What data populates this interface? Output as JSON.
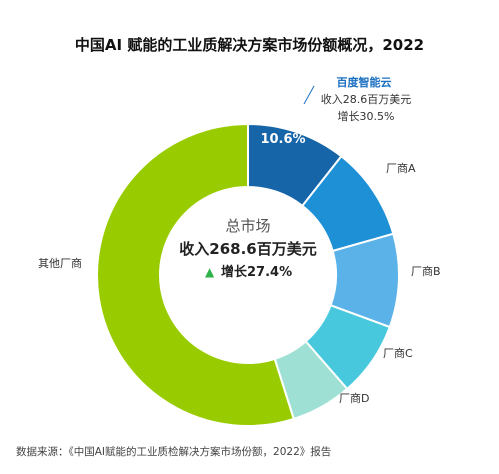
{
  "title": "中国AI 赋能的工业质解决方案市场份额概况，2022",
  "center": {
    "line1": "总市场",
    "line2": "收入268.6百万美元",
    "arrow": "▲",
    "line3": "增长27.4%"
  },
  "callout": {
    "brand": "百度智能云",
    "revenue": "收入28.6百万美元",
    "growth": "增长30.5%"
  },
  "source": "数据来源：《中国AI赋能的工业质检解决方案市场份额，2022》报告",
  "chart_data": {
    "type": "pie",
    "donut": true,
    "labels": [
      "百度智能云",
      "厂商A",
      "厂商B",
      "厂商C",
      "厂商D",
      "其他厂商"
    ],
    "values": [
      10.6,
      10.0,
      10.0,
      8.0,
      6.5,
      54.9
    ],
    "data_labels": [
      "10.6%",
      "",
      "",
      "",
      "",
      ""
    ],
    "colors": [
      "#1565a8",
      "#1e90d6",
      "#5ab2e8",
      "#47c8dc",
      "#9fe0d4",
      "#99cc00"
    ]
  }
}
